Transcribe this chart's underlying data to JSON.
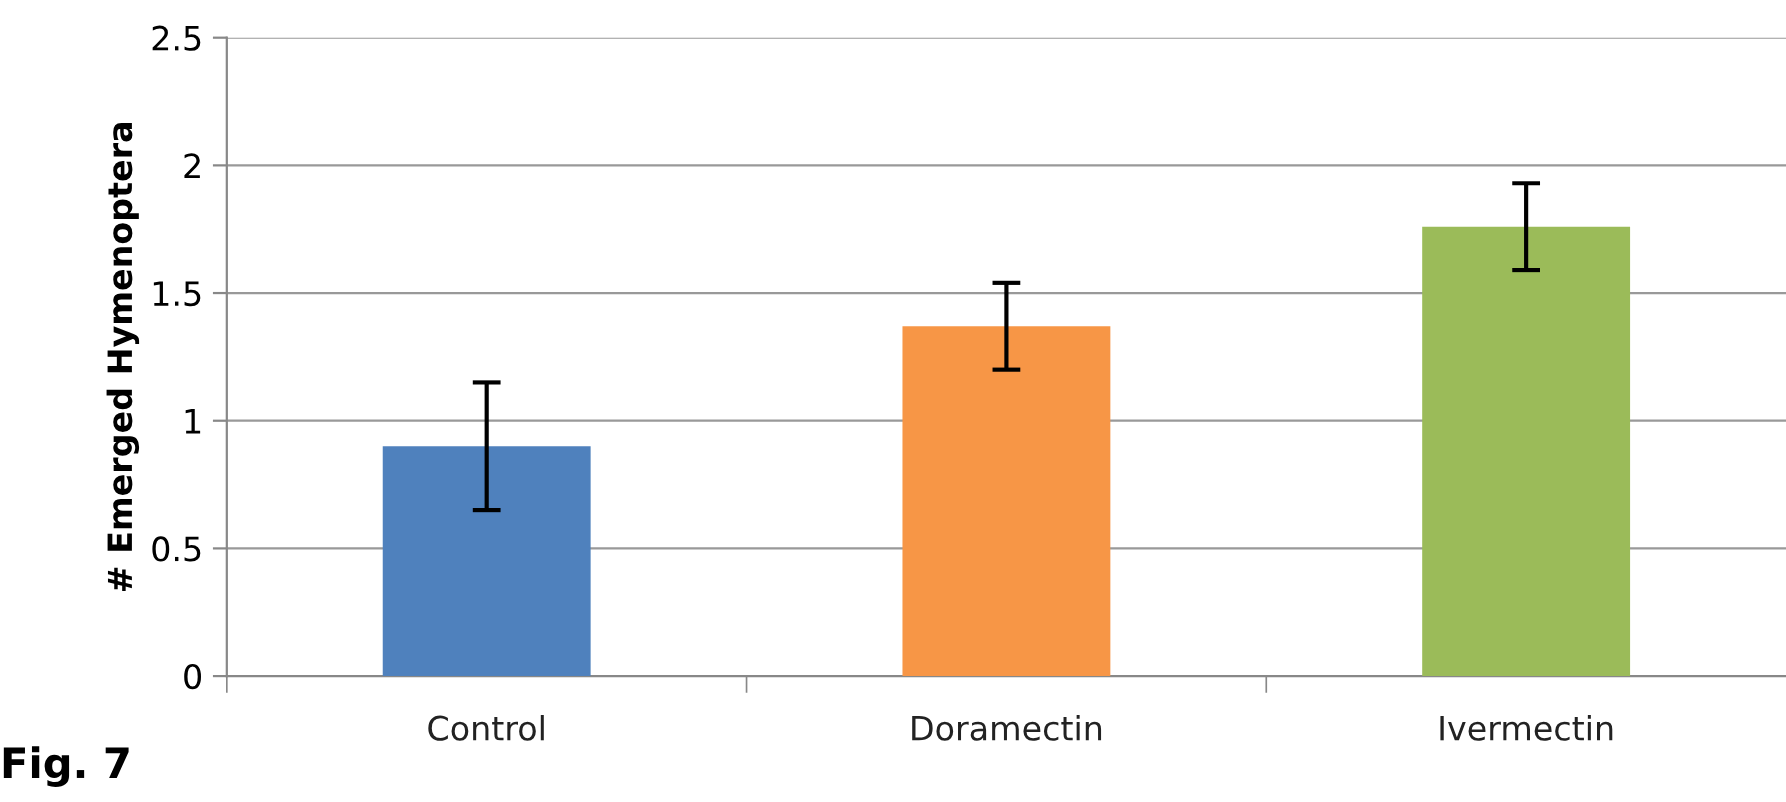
{
  "chart_data": {
    "type": "bar",
    "ylabel": "# Emerged Hymenoptera",
    "categories": [
      "Control",
      "Doramectin",
      "Ivermectin"
    ],
    "values": [
      0.9,
      1.37,
      1.76
    ],
    "colors": [
      "#4f81bd",
      "#f79646",
      "#9bbb59"
    ],
    "errors": [
      0.25,
      0.17,
      0.17
    ],
    "ylim": [
      0,
      2.5
    ],
    "yticks": [
      0,
      0.5,
      1,
      1.5,
      2,
      2.5
    ],
    "grid": "y",
    "legend": false,
    "annotations": [
      "Fig. 7"
    ]
  }
}
